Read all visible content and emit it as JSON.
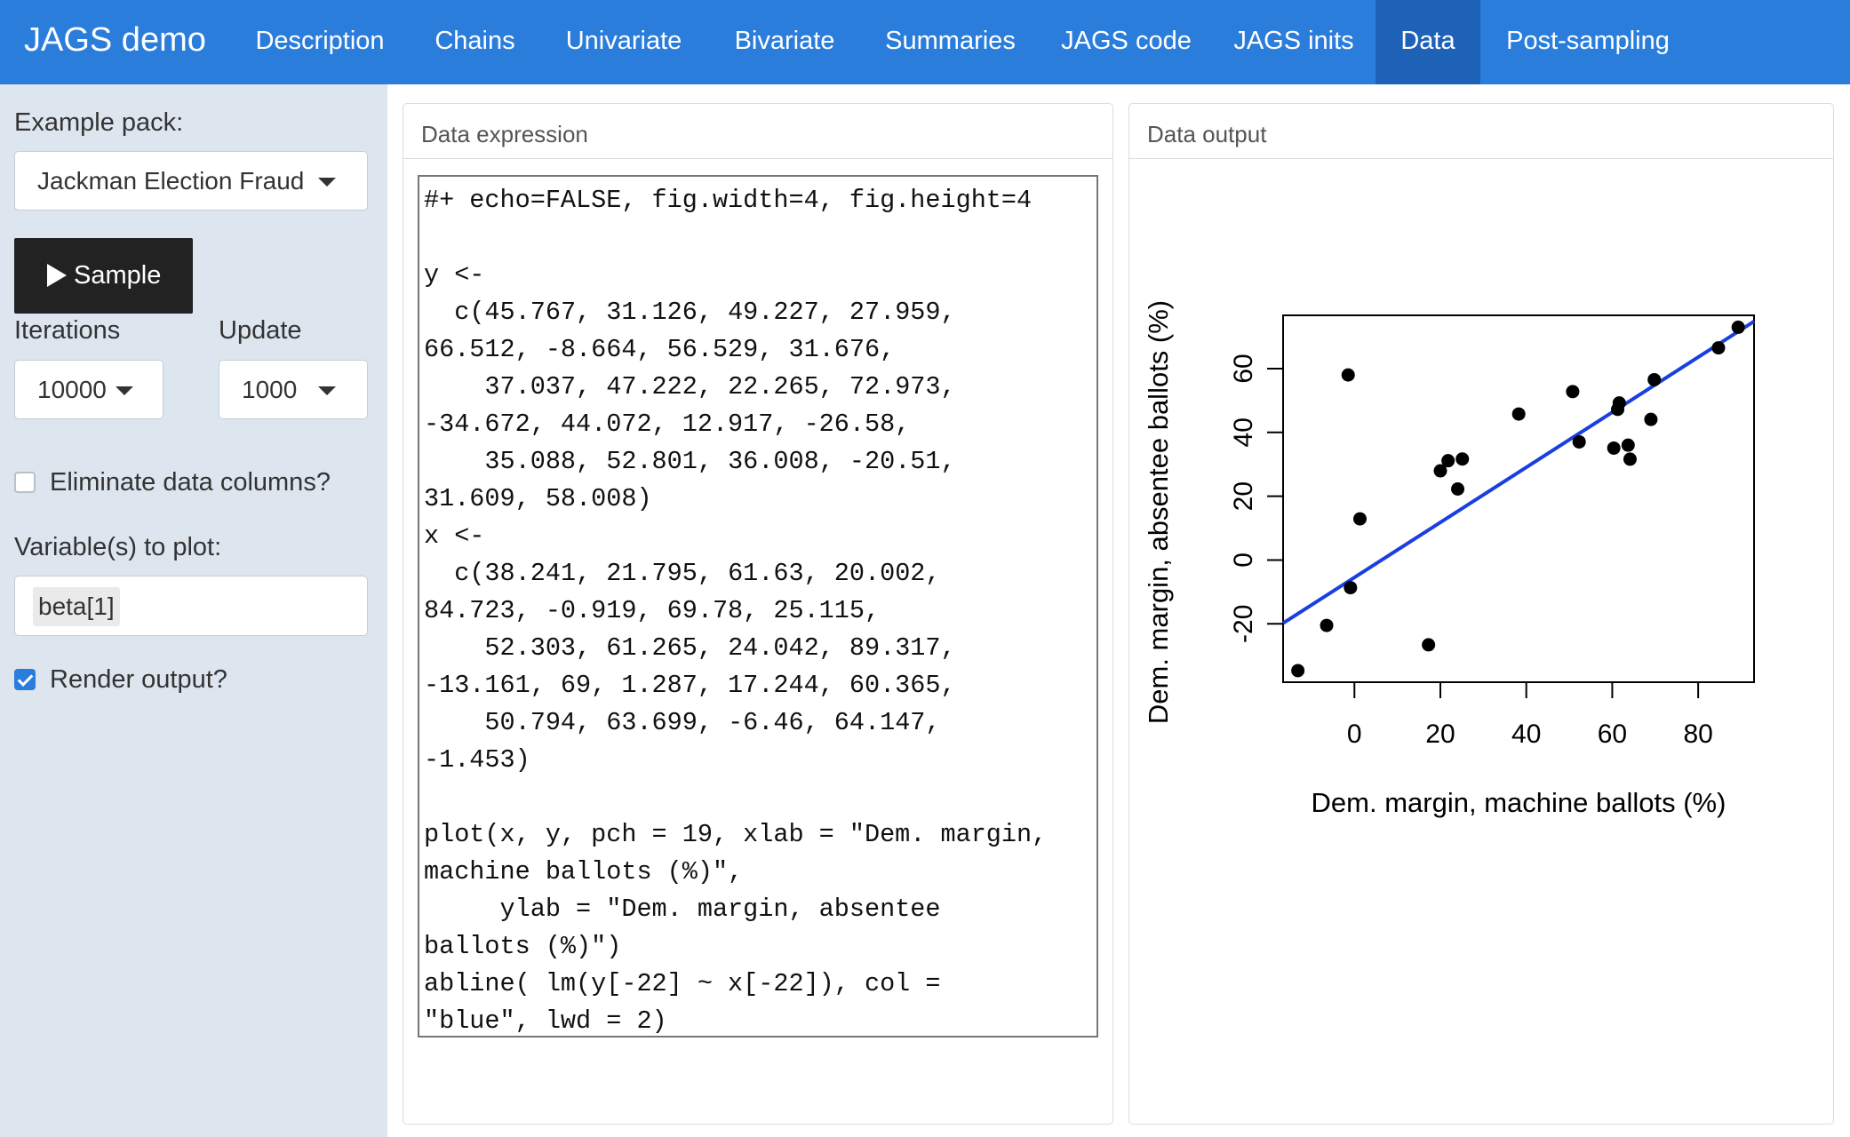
{
  "navbar": {
    "brand": "JAGS demo",
    "tabs": [
      {
        "label": "Description"
      },
      {
        "label": "Chains"
      },
      {
        "label": "Univariate"
      },
      {
        "label": "Bivariate"
      },
      {
        "label": "Summaries"
      },
      {
        "label": "JAGS code"
      },
      {
        "label": "JAGS inits"
      },
      {
        "label": "Data"
      },
      {
        "label": "Post-sampling"
      }
    ],
    "active_tab": "Data",
    "color": "#2b7ddc",
    "active_color": "#1e62b7"
  },
  "sidebar": {
    "example_pack_label": "Example pack:",
    "example_pack_value": "Jackman Election Fraud",
    "sample_button": "Sample",
    "iterations_label": "Iterations",
    "iterations_value": "10000",
    "update_label": "Update",
    "update_value": "1000",
    "eliminate_label": "Eliminate data columns?",
    "eliminate_checked": false,
    "variables_label": "Variable(s) to plot:",
    "variables_value": "beta[1]",
    "render_label": "Render output?",
    "render_checked": true
  },
  "data_expression": {
    "title": "Data expression",
    "code": "#+ echo=FALSE, fig.width=4, fig.height=4\n\ny <-\n  c(45.767, 31.126, 49.227, 27.959,\n66.512, -8.664, 56.529, 31.676,\n    37.037, 47.222, 22.265, 72.973,\n-34.672, 44.072, 12.917, -26.58,\n    35.088, 52.801, 36.008, -20.51,\n31.609, 58.008)\nx <-\n  c(38.241, 21.795, 61.63, 20.002,\n84.723, -0.919, 69.78, 25.115,\n    52.303, 61.265, 24.042, 89.317,\n-13.161, 69, 1.287, 17.244, 60.365,\n    50.794, 63.699, -6.46, 64.147,\n-1.453)\n\nplot(x, y, pch = 19, xlab = \"Dem. margin,\nmachine ballots (%)\",\n     ylab = \"Dem. margin, absentee\nballots (%)\")\nabline( lm(y[-22] ~ x[-22]), col =\n\"blue\", lwd = 2)"
  },
  "data_output": {
    "title": "Data output"
  },
  "chart_data": {
    "type": "scatter",
    "xlabel": "Dem. margin, machine ballots (%)",
    "ylabel": "Dem. margin, absentee ballots (%)",
    "xlim": [
      -16.6,
      93.0
    ],
    "ylim": [
      -38.3,
      76.7
    ],
    "xticks": [
      0,
      20,
      40,
      60,
      80
    ],
    "yticks": [
      -20,
      0,
      20,
      40,
      60
    ],
    "points": {
      "x": [
        38.241,
        21.795,
        61.63,
        20.002,
        84.723,
        -0.919,
        69.78,
        25.115,
        52.303,
        61.265,
        24.042,
        89.317,
        -13.161,
        69,
        1.287,
        17.244,
        60.365,
        50.794,
        63.699,
        -6.46,
        64.147,
        -1.453
      ],
      "y": [
        45.767,
        31.126,
        49.227,
        27.959,
        66.512,
        -8.664,
        56.529,
        31.676,
        37.037,
        47.222,
        22.265,
        72.973,
        -34.672,
        44.072,
        12.917,
        -26.58,
        35.088,
        52.801,
        36.008,
        -20.51,
        31.609,
        58.008
      ]
    },
    "fit_line": {
      "intercept": -5.46,
      "slope": 0.863,
      "color": "#1a3fe0"
    },
    "point_color": "#000000",
    "grid": false
  }
}
